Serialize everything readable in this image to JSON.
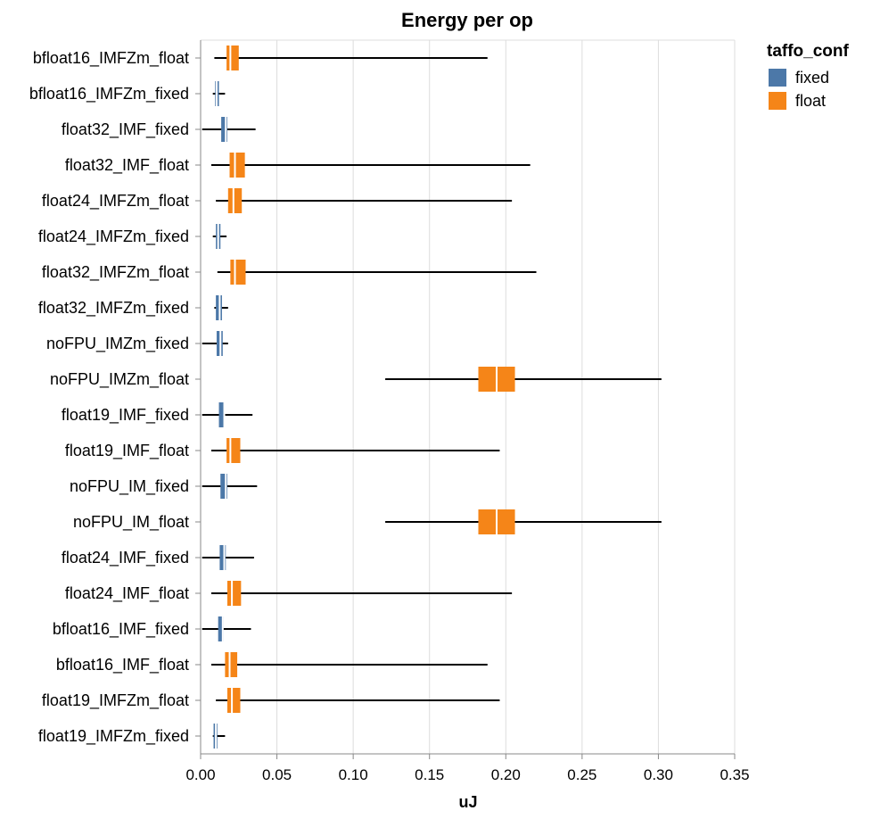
{
  "chart_data": {
    "type": "boxplot",
    "orientation": "horizontal",
    "title": "Energy per op",
    "xlabel": "uJ",
    "ylabel": "",
    "xlim": [
      0,
      0.35
    ],
    "x_ticks": [
      "0.00",
      "0.05",
      "0.10",
      "0.15",
      "0.20",
      "0.25",
      "0.30",
      "0.35"
    ],
    "grid": true,
    "legend": {
      "title": "taffo_conf",
      "position": "right",
      "entries": [
        {
          "name": "fixed",
          "color": "#4c78a8"
        },
        {
          "name": "float",
          "color": "#f58518"
        }
      ]
    },
    "categories": [
      "bfloat16_IMFZm_float",
      "bfloat16_IMFZm_fixed",
      "float32_IMF_fixed",
      "float32_IMF_float",
      "float24_IMFZm_float",
      "float24_IMFZm_fixed",
      "float32_IMFZm_float",
      "float32_IMFZm_fixed",
      "noFPU_IMZm_fixed",
      "noFPU_IMZm_float",
      "float19_IMF_fixed",
      "float19_IMF_float",
      "noFPU_IM_fixed",
      "noFPU_IM_float",
      "float24_IMF_fixed",
      "float24_IMF_float",
      "bfloat16_IMF_fixed",
      "bfloat16_IMF_float",
      "float19_IMFZm_float",
      "float19_IMFZm_fixed"
    ],
    "boxes": [
      {
        "config": "float",
        "min": 0.009,
        "q1": 0.017,
        "median": 0.0195,
        "q3": 0.025,
        "max": 0.188
      },
      {
        "config": "fixed",
        "min": 0.008,
        "q1": 0.0095,
        "median": 0.0105,
        "q3": 0.012,
        "max": 0.016
      },
      {
        "config": "fixed",
        "min": 0.001,
        "q1": 0.0135,
        "median": 0.0165,
        "q3": 0.0175,
        "max": 0.036
      },
      {
        "config": "float",
        "min": 0.007,
        "q1": 0.019,
        "median": 0.0225,
        "q3": 0.029,
        "max": 0.216
      },
      {
        "config": "float",
        "min": 0.01,
        "q1": 0.018,
        "median": 0.0215,
        "q3": 0.027,
        "max": 0.204
      },
      {
        "config": "fixed",
        "min": 0.008,
        "q1": 0.01,
        "median": 0.0115,
        "q3": 0.013,
        "max": 0.017
      },
      {
        "config": "float",
        "min": 0.011,
        "q1": 0.0195,
        "median": 0.0225,
        "q3": 0.0295,
        "max": 0.22
      },
      {
        "config": "fixed",
        "min": 0.009,
        "q1": 0.01,
        "median": 0.0125,
        "q3": 0.014,
        "max": 0.018
      },
      {
        "config": "fixed",
        "min": 0.001,
        "q1": 0.0105,
        "median": 0.013,
        "q3": 0.0145,
        "max": 0.018
      },
      {
        "config": "float",
        "min": 0.121,
        "q1": 0.182,
        "median": 0.194,
        "q3": 0.206,
        "max": 0.302
      },
      {
        "config": "fixed",
        "min": 0.001,
        "q1": 0.012,
        "median": 0.0155,
        "q3": 0.016,
        "max": 0.034
      },
      {
        "config": "float",
        "min": 0.007,
        "q1": 0.017,
        "median": 0.0195,
        "q3": 0.026,
        "max": 0.196
      },
      {
        "config": "fixed",
        "min": 0.001,
        "q1": 0.013,
        "median": 0.0165,
        "q3": 0.0175,
        "max": 0.037
      },
      {
        "config": "float",
        "min": 0.121,
        "q1": 0.182,
        "median": 0.194,
        "q3": 0.206,
        "max": 0.302
      },
      {
        "config": "fixed",
        "min": 0.001,
        "q1": 0.0125,
        "median": 0.0155,
        "q3": 0.0165,
        "max": 0.035
      },
      {
        "config": "float",
        "min": 0.007,
        "q1": 0.0175,
        "median": 0.0205,
        "q3": 0.0265,
        "max": 0.204
      },
      {
        "config": "fixed",
        "min": 0.001,
        "q1": 0.0115,
        "median": 0.0145,
        "q3": 0.015,
        "max": 0.033
      },
      {
        "config": "float",
        "min": 0.007,
        "q1": 0.016,
        "median": 0.019,
        "q3": 0.024,
        "max": 0.188
      },
      {
        "config": "float",
        "min": 0.01,
        "q1": 0.0175,
        "median": 0.0205,
        "q3": 0.026,
        "max": 0.196
      },
      {
        "config": "fixed",
        "min": 0.008,
        "q1": 0.0085,
        "median": 0.01,
        "q3": 0.011,
        "max": 0.016
      }
    ]
  }
}
